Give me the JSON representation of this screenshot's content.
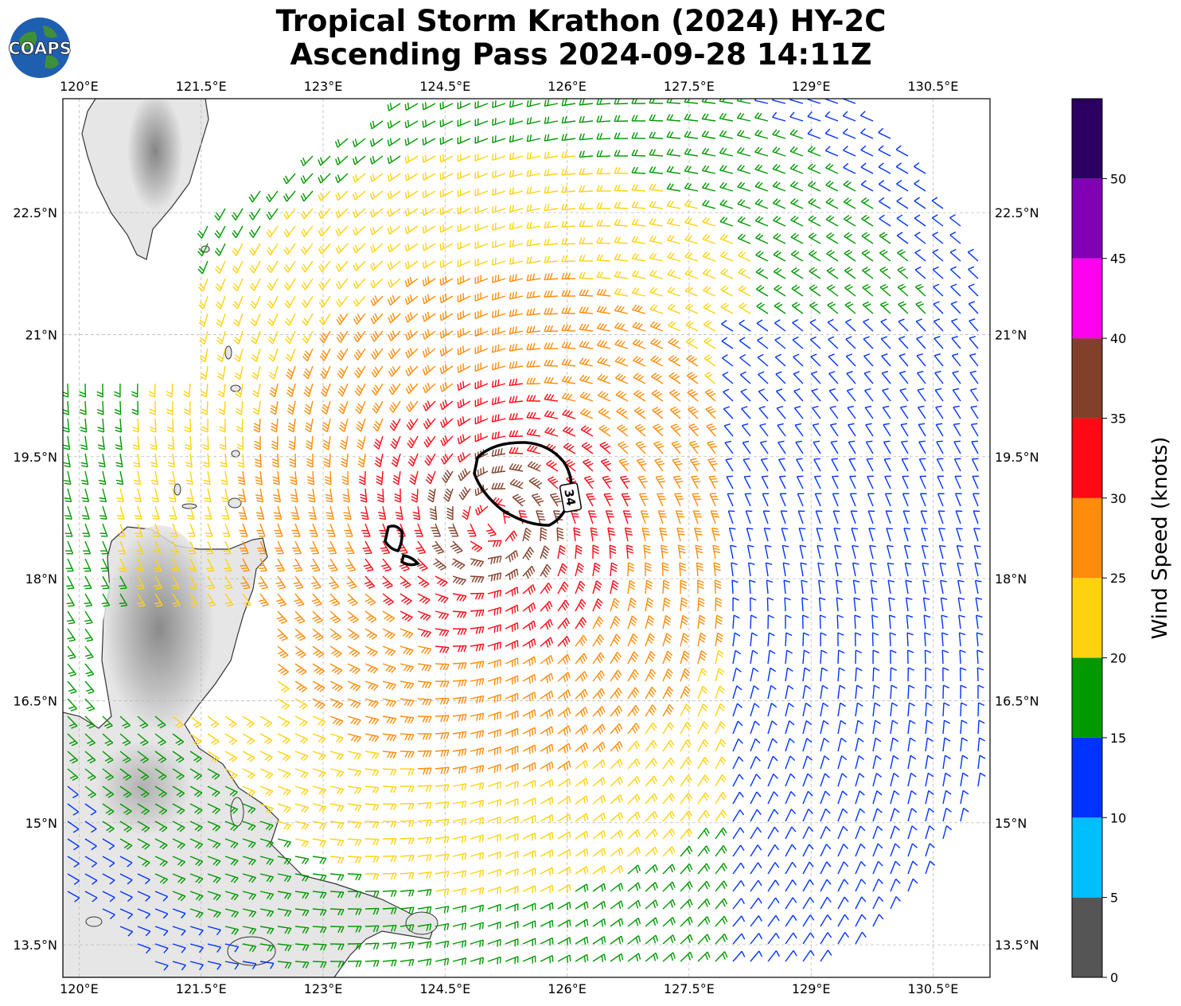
{
  "title": {
    "line1": "Tropical Storm Krathon (2024) HY-2C",
    "line2": "Ascending Pass 2024-09-28 14:11Z"
  },
  "logo": {
    "text": "COAPS"
  },
  "map": {
    "lon_range": [
      119.8,
      131.2
    ],
    "lat_range": [
      13.1,
      23.9
    ],
    "lon_ticks": [
      "120°E",
      "121.5°E",
      "123°E",
      "124.5°E",
      "126°E",
      "127.5°E",
      "129°E",
      "130.5°E"
    ],
    "lat_ticks": [
      "22.5°N",
      "21°N",
      "19.5°N",
      "18°N",
      "16.5°N",
      "15°N",
      "13.5°N"
    ],
    "storm_center": {
      "lon": 125.1,
      "lat": 18.7
    },
    "contour_label": "34",
    "land_color": "#e6e6e6",
    "coast_color": "#333333"
  },
  "colorbar": {
    "label": "Wind Speed (knots)",
    "ticks": [
      "0",
      "5",
      "10",
      "15",
      "20",
      "25",
      "30",
      "35",
      "40",
      "45",
      "50"
    ],
    "bins": [
      {
        "min": 0,
        "max": 5,
        "color": "#555555"
      },
      {
        "min": 5,
        "max": 10,
        "color": "#00bfff"
      },
      {
        "min": 10,
        "max": 15,
        "color": "#0033ff"
      },
      {
        "min": 15,
        "max": 20,
        "color": "#009900"
      },
      {
        "min": 20,
        "max": 25,
        "color": "#ffd20f"
      },
      {
        "min": 25,
        "max": 30,
        "color": "#ff8c0a"
      },
      {
        "min": 30,
        "max": 35,
        "color": "#ff0a14"
      },
      {
        "min": 35,
        "max": 40,
        "color": "#82402a"
      },
      {
        "min": 40,
        "max": 45,
        "color": "#ff00ee"
      },
      {
        "min": 45,
        "max": 50,
        "color": "#8000b4"
      },
      {
        "min": 50,
        "max": 55,
        "color": "#2a0060"
      }
    ]
  }
}
